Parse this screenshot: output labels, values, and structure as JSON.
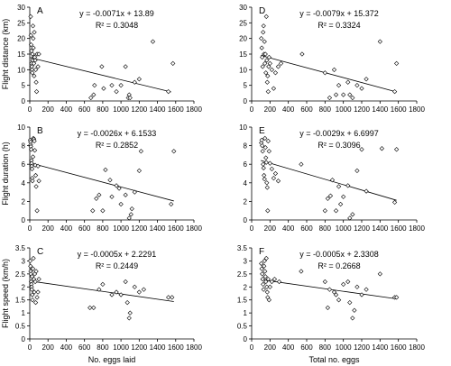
{
  "chart_data": [
    {
      "type": "scatter",
      "letter": "A",
      "ylabel": "Flight distance (km)",
      "xlabel": "",
      "xlim": [
        0,
        1800
      ],
      "ylim": [
        0,
        30
      ],
      "xticks": [
        "0",
        "200",
        "400",
        "600",
        "800",
        "1000",
        "1200",
        "1400",
        "1600",
        "1800"
      ],
      "yticks": [
        "0",
        "5",
        "10",
        "15",
        "20",
        "25",
        "30"
      ],
      "equation": "y = -0.0071x + 13.89",
      "r2": "R² = 0.3048",
      "trend": {
        "slope": -0.0071,
        "intercept": 13.89,
        "x": [
          0,
          1550
        ]
      },
      "points": [
        [
          10,
          27
        ],
        [
          12,
          21
        ],
        [
          15,
          18
        ],
        [
          18,
          16
        ],
        [
          20,
          12
        ],
        [
          22,
          11
        ],
        [
          25,
          10
        ],
        [
          28,
          9
        ],
        [
          30,
          15
        ],
        [
          33,
          13
        ],
        [
          35,
          24
        ],
        [
          38,
          20
        ],
        [
          40,
          17
        ],
        [
          42,
          14
        ],
        [
          45,
          12
        ],
        [
          48,
          8
        ],
        [
          50,
          22
        ],
        [
          55,
          14
        ],
        [
          60,
          13
        ],
        [
          65,
          10
        ],
        [
          70,
          6
        ],
        [
          75,
          3
        ],
        [
          80,
          15
        ],
        [
          90,
          11
        ],
        [
          100,
          15
        ],
        [
          670,
          1
        ],
        [
          700,
          2
        ],
        [
          710,
          5
        ],
        [
          790,
          11
        ],
        [
          810,
          4
        ],
        [
          900,
          5
        ],
        [
          950,
          3
        ],
        [
          1000,
          5
        ],
        [
          1050,
          11
        ],
        [
          1080,
          1
        ],
        [
          1090,
          2
        ],
        [
          1100,
          1
        ],
        [
          1150,
          6
        ],
        [
          1200,
          7
        ],
        [
          1350,
          19
        ],
        [
          1520,
          3
        ],
        [
          1570,
          12
        ]
      ]
    },
    {
      "type": "scatter",
      "letter": "D",
      "ylabel": "",
      "xlabel": "",
      "xlim": [
        0,
        1800
      ],
      "ylim": [
        0,
        30
      ],
      "xticks": [
        "0",
        "200",
        "400",
        "600",
        "800",
        "1000",
        "1200",
        "1400",
        "1600",
        "1800"
      ],
      "yticks": [
        "0",
        "5",
        "10",
        "15",
        "20",
        "25",
        "30"
      ],
      "equation": "y = -0.0079x + 15.372",
      "r2": "R² = 0.3324",
      "trend": {
        "slope": -0.0079,
        "intercept": 15.372,
        "x": [
          100,
          1580
        ]
      },
      "points": [
        [
          105,
          20
        ],
        [
          110,
          17
        ],
        [
          115,
          14
        ],
        [
          120,
          11
        ],
        [
          125,
          22
        ],
        [
          130,
          24
        ],
        [
          135,
          15
        ],
        [
          140,
          19
        ],
        [
          145,
          12
        ],
        [
          150,
          15
        ],
        [
          155,
          9
        ],
        [
          160,
          27
        ],
        [
          165,
          13
        ],
        [
          170,
          6
        ],
        [
          175,
          8
        ],
        [
          180,
          3
        ],
        [
          185,
          11
        ],
        [
          190,
          14
        ],
        [
          200,
          12
        ],
        [
          220,
          10
        ],
        [
          240,
          4
        ],
        [
          260,
          9
        ],
        [
          290,
          11
        ],
        [
          320,
          12
        ],
        [
          550,
          15
        ],
        [
          800,
          9
        ],
        [
          850,
          1
        ],
        [
          900,
          10
        ],
        [
          920,
          2
        ],
        [
          950,
          5
        ],
        [
          1000,
          2
        ],
        [
          1050,
          6
        ],
        [
          1070,
          2
        ],
        [
          1100,
          1
        ],
        [
          1150,
          5
        ],
        [
          1200,
          4
        ],
        [
          1250,
          7
        ],
        [
          1400,
          19
        ],
        [
          1560,
          3
        ],
        [
          1580,
          12
        ]
      ]
    },
    {
      "type": "scatter",
      "letter": "B",
      "ylabel": "Flight duration (h)",
      "xlabel": "",
      "xlim": [
        0,
        1800
      ],
      "ylim": [
        0,
        10
      ],
      "xticks": [
        "0",
        "200",
        "400",
        "600",
        "800",
        "1000",
        "1200",
        "1400",
        "1600",
        "1800"
      ],
      "yticks": [
        "0",
        "2",
        "4",
        "6",
        "8",
        "10"
      ],
      "equation": "y = -0.0026x + 6.1533",
      "r2": "R² = 0.2852",
      "trend": {
        "slope": -0.0026,
        "intercept": 6.1533,
        "x": [
          0,
          1580
        ]
      },
      "points": [
        [
          5,
          8.6
        ],
        [
          8,
          8.4
        ],
        [
          10,
          8.1
        ],
        [
          12,
          7.9
        ],
        [
          15,
          7.6
        ],
        [
          18,
          6.4
        ],
        [
          20,
          6.1
        ],
        [
          22,
          5.8
        ],
        [
          25,
          5.5
        ],
        [
          28,
          4.5
        ],
        [
          30,
          4.2
        ],
        [
          35,
          6.8
        ],
        [
          40,
          8.8
        ],
        [
          45,
          8.7
        ],
        [
          50,
          8.5
        ],
        [
          55,
          7.5
        ],
        [
          60,
          5.9
        ],
        [
          65,
          4.8
        ],
        [
          70,
          3.6
        ],
        [
          80,
          1.0
        ],
        [
          90,
          5.8
        ],
        [
          100,
          4.2
        ],
        [
          690,
          1.0
        ],
        [
          730,
          2.3
        ],
        [
          760,
          2.7
        ],
        [
          800,
          1.0
        ],
        [
          830,
          5.4
        ],
        [
          880,
          4.3
        ],
        [
          900,
          2.5
        ],
        [
          950,
          3.7
        ],
        [
          980,
          3.4
        ],
        [
          1000,
          1.7
        ],
        [
          1050,
          2.7
        ],
        [
          1090,
          0.2
        ],
        [
          1110,
          0.6
        ],
        [
          1120,
          1.2
        ],
        [
          1150,
          3.0
        ],
        [
          1200,
          5.3
        ],
        [
          1220,
          7.4
        ],
        [
          1550,
          1.7
        ],
        [
          1580,
          7.4
        ]
      ]
    },
    {
      "type": "scatter",
      "letter": "E",
      "ylabel": "",
      "xlabel": "",
      "xlim": [
        0,
        1800
      ],
      "ylim": [
        0,
        10
      ],
      "xticks": [
        "0",
        "200",
        "400",
        "600",
        "800",
        "1000",
        "1200",
        "1400",
        "1600",
        "1800"
      ],
      "yticks": [
        "0",
        "2",
        "4",
        "6",
        "8",
        "10"
      ],
      "equation": "y = -0.0029x + 6.6997",
      "r2": "R² = 0.3096",
      "trend": {
        "slope": -0.0029,
        "intercept": 6.6997,
        "x": [
          100,
          1580
        ]
      },
      "points": [
        [
          105,
          8.3
        ],
        [
          110,
          8.6
        ],
        [
          115,
          8.0
        ],
        [
          120,
          7.4
        ],
        [
          125,
          6.0
        ],
        [
          130,
          5.6
        ],
        [
          135,
          4.8
        ],
        [
          140,
          4.4
        ],
        [
          145,
          8.8
        ],
        [
          150,
          7.8
        ],
        [
          155,
          6.7
        ],
        [
          160,
          6.2
        ],
        [
          165,
          4.0
        ],
        [
          170,
          3.5
        ],
        [
          175,
          1.0
        ],
        [
          180,
          8.5
        ],
        [
          190,
          7.4
        ],
        [
          200,
          6.1
        ],
        [
          220,
          5.5
        ],
        [
          240,
          4.5
        ],
        [
          260,
          5.0
        ],
        [
          290,
          4.2
        ],
        [
          540,
          6.0
        ],
        [
          800,
          1.0
        ],
        [
          830,
          2.3
        ],
        [
          860,
          2.6
        ],
        [
          880,
          4.3
        ],
        [
          920,
          1.0
        ],
        [
          950,
          3.6
        ],
        [
          970,
          1.7
        ],
        [
          1000,
          2.5
        ],
        [
          1050,
          3.7
        ],
        [
          1070,
          0.2
        ],
        [
          1100,
          0.6
        ],
        [
          1150,
          5.3
        ],
        [
          1200,
          7.6
        ],
        [
          1250,
          3.1
        ],
        [
          1420,
          7.7
        ],
        [
          1560,
          1.9
        ],
        [
          1580,
          7.6
        ]
      ]
    },
    {
      "type": "scatter",
      "letter": "C",
      "ylabel": "Flight speed (km/h)",
      "xlabel": "No. eggs laid",
      "xlim": [
        0,
        1800
      ],
      "ylim": [
        0,
        3.5
      ],
      "xticks": [
        "0",
        "200",
        "400",
        "600",
        "800",
        "1000",
        "1200",
        "1400",
        "1600",
        "1800"
      ],
      "yticks": [
        "0",
        "0.5",
        "1",
        "1.5",
        "2",
        "2.5",
        "3",
        "3.5"
      ],
      "equation": "y = -0.0005x + 2.2291",
      "r2": "R² = 0.2449",
      "trend": {
        "slope": -0.0005,
        "intercept": 2.2291,
        "x": [
          0,
          1580
        ]
      },
      "points": [
        [
          5,
          3.0
        ],
        [
          8,
          2.8
        ],
        [
          10,
          2.6
        ],
        [
          12,
          2.5
        ],
        [
          15,
          2.2
        ],
        [
          18,
          2.1
        ],
        [
          20,
          2.0
        ],
        [
          22,
          1.9
        ],
        [
          25,
          2.4
        ],
        [
          28,
          1.7
        ],
        [
          30,
          1.5
        ],
        [
          35,
          2.7
        ],
        [
          40,
          3.1
        ],
        [
          45,
          2.3
        ],
        [
          50,
          1.8
        ],
        [
          55,
          2.5
        ],
        [
          60,
          2.2
        ],
        [
          65,
          1.4
        ],
        [
          70,
          2.6
        ],
        [
          80,
          1.6
        ],
        [
          90,
          1.8
        ],
        [
          100,
          2.3
        ],
        [
          660,
          1.2
        ],
        [
          700,
          1.2
        ],
        [
          760,
          1.9
        ],
        [
          800,
          2.1
        ],
        [
          900,
          1.7
        ],
        [
          950,
          1.8
        ],
        [
          1000,
          1.7
        ],
        [
          1050,
          2.2
        ],
        [
          1070,
          1.4
        ],
        [
          1090,
          0.8
        ],
        [
          1100,
          1.0
        ],
        [
          1150,
          2.0
        ],
        [
          1200,
          1.8
        ],
        [
          1250,
          1.9
        ],
        [
          1520,
          1.6
        ],
        [
          1560,
          1.6
        ]
      ]
    },
    {
      "type": "scatter",
      "letter": "F",
      "ylabel": "",
      "xlabel": "Total no. eggs",
      "xlim": [
        0,
        1800
      ],
      "ylim": [
        0,
        3.5
      ],
      "xticks": [
        "0",
        "200",
        "400",
        "600",
        "800",
        "1000",
        "1200",
        "1400",
        "1600",
        "1800"
      ],
      "yticks": [
        "0",
        "0.5",
        "1",
        "1.5",
        "2",
        "2.5",
        "3",
        "3.5"
      ],
      "equation": "y = -0.0005x + 2.3308",
      "r2": "R² = 0.2668",
      "trend": {
        "slope": -0.0005,
        "intercept": 2.3308,
        "x": [
          100,
          1580
        ]
      },
      "points": [
        [
          105,
          2.9
        ],
        [
          110,
          2.7
        ],
        [
          115,
          2.5
        ],
        [
          120,
          2.3
        ],
        [
          125,
          2.1
        ],
        [
          130,
          1.9
        ],
        [
          135,
          2.8
        ],
        [
          140,
          3.0
        ],
        [
          145,
          2.6
        ],
        [
          150,
          2.4
        ],
        [
          155,
          2.2
        ],
        [
          160,
          3.1
        ],
        [
          165,
          2.0
        ],
        [
          170,
          1.8
        ],
        [
          175,
          1.6
        ],
        [
          180,
          2.3
        ],
        [
          190,
          1.5
        ],
        [
          200,
          2.0
        ],
        [
          220,
          2.2
        ],
        [
          250,
          2.3
        ],
        [
          300,
          2.2
        ],
        [
          540,
          2.6
        ],
        [
          800,
          2.2
        ],
        [
          830,
          1.2
        ],
        [
          850,
          1.9
        ],
        [
          900,
          1.8
        ],
        [
          920,
          1.7
        ],
        [
          950,
          1.5
        ],
        [
          1000,
          2.1
        ],
        [
          1050,
          2.2
        ],
        [
          1070,
          1.4
        ],
        [
          1100,
          0.8
        ],
        [
          1120,
          1.1
        ],
        [
          1150,
          2.0
        ],
        [
          1200,
          1.7
        ],
        [
          1250,
          1.9
        ],
        [
          1400,
          2.5
        ],
        [
          1560,
          1.6
        ],
        [
          1580,
          1.6
        ]
      ]
    }
  ]
}
